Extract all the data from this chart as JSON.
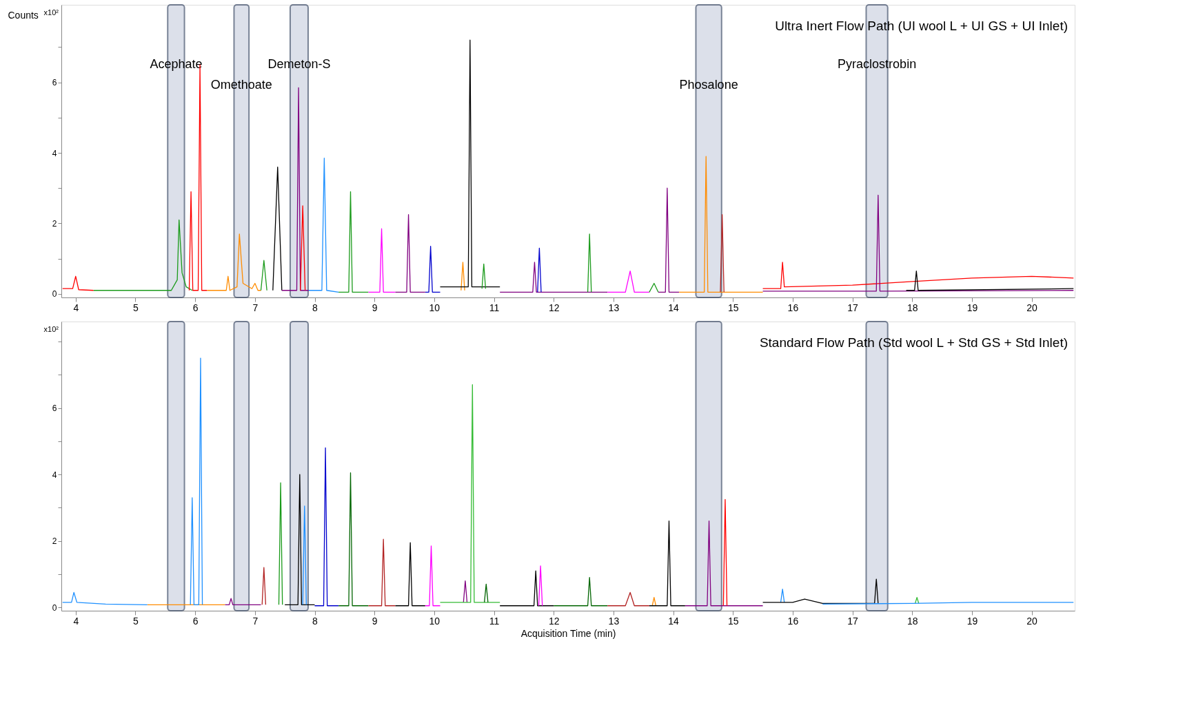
{
  "chart_data": [
    {
      "type": "line",
      "title": "Ultra Inert Flow Path (UI wool L + UI GS + UI Inlet)",
      "ylabel": "Counts",
      "annotations": [
        "x10²"
      ],
      "xlim": [
        3.76,
        20.72
      ],
      "xticks": [
        4,
        5,
        6,
        7,
        8,
        9,
        10,
        11,
        12,
        13,
        14,
        15,
        16,
        17,
        18,
        19,
        20
      ],
      "ylim": [
        -0.1,
        8.2
      ],
      "yticks": [
        0,
        {
          "value": 1,
          "label": null
        },
        2,
        {
          "value": 3,
          "label": null
        },
        4,
        {
          "value": 5,
          "label": null
        },
        6,
        {
          "value": 7,
          "label": null
        }
      ],
      "grid": false,
      "legend": false,
      "bands": [
        {
          "axis": "x",
          "from": 5.54,
          "to": 5.82,
          "label": "Acephate",
          "color": "#c5ccdd"
        },
        {
          "axis": "x",
          "from": 6.65,
          "to": 6.9,
          "label": "Omethoate",
          "color": "#c5ccdd"
        },
        {
          "axis": "x",
          "from": 7.59,
          "to": 7.89,
          "label": "Demeton-S",
          "color": "#c5ccdd"
        },
        {
          "axis": "x",
          "from": 14.38,
          "to": 14.81,
          "label": "Phosalone",
          "color": "#c5ccdd"
        },
        {
          "axis": "x",
          "from": 17.23,
          "to": 17.59,
          "label": "Pyraclostrobin",
          "color": "#c5ccdd"
        }
      ],
      "series": [
        {
          "color": "#ff0000",
          "x": [
            3.78,
            3.95,
            4.0,
            4.05,
            4.3
          ],
          "values": [
            0.15,
            0.15,
            0.5,
            0.12,
            0.1
          ]
        },
        {
          "color": "#1a9a1a",
          "x": [
            4.3,
            5.0,
            5.6,
            5.7,
            5.73,
            5.78,
            5.85,
            5.95
          ],
          "values": [
            0.1,
            0.1,
            0.1,
            0.4,
            2.1,
            0.6,
            0.2,
            0.1
          ]
        },
        {
          "color": "#ff0000",
          "x": [
            5.9,
            5.93,
            5.96,
            6.05,
            6.08,
            6.11,
            6.2
          ],
          "values": [
            0.1,
            2.9,
            0.1,
            0.1,
            6.5,
            0.1,
            0.1
          ]
        },
        {
          "color": "#ff8c00",
          "x": [
            6.2,
            6.52,
            6.55,
            6.58,
            6.7,
            6.74,
            6.8,
            6.95,
            7.0,
            7.05,
            7.1
          ],
          "values": [
            0.1,
            0.1,
            0.5,
            0.1,
            0.2,
            1.7,
            0.3,
            0.15,
            0.3,
            0.1,
            0.1
          ]
        },
        {
          "color": "#1a9a1a",
          "x": [
            7.1,
            7.15,
            7.2
          ],
          "values": [
            0.1,
            0.95,
            0.1
          ]
        },
        {
          "color": "#000000",
          "x": [
            7.3,
            7.38,
            7.45
          ],
          "values": [
            0.1,
            3.6,
            0.1
          ]
        },
        {
          "color": "#800080",
          "x": [
            7.45,
            7.7,
            7.73,
            7.76,
            7.9
          ],
          "values": [
            0.1,
            0.1,
            5.85,
            0.1,
            0.1
          ]
        },
        {
          "color": "#ff0000",
          "x": [
            7.76,
            7.8,
            7.84
          ],
          "values": [
            0.1,
            2.5,
            0.1
          ]
        },
        {
          "color": "#1e90ff",
          "x": [
            7.9,
            8.12,
            8.16,
            8.2,
            8.4
          ],
          "values": [
            0.1,
            0.1,
            3.85,
            0.1,
            0.05
          ]
        },
        {
          "color": "#1a9a1a",
          "x": [
            8.4,
            8.57,
            8.6,
            8.63,
            8.9
          ],
          "values": [
            0.05,
            0.05,
            2.9,
            0.05,
            0.05
          ]
        },
        {
          "color": "#ff00ff",
          "x": [
            8.9,
            9.09,
            9.12,
            9.15,
            9.35
          ],
          "values": [
            0.05,
            0.05,
            1.85,
            0.05,
            0.05
          ]
        },
        {
          "color": "#800080",
          "x": [
            9.35,
            9.54,
            9.57,
            9.6,
            9.85
          ],
          "values": [
            0.05,
            0.05,
            2.25,
            0.05,
            0.05
          ]
        },
        {
          "color": "#0000cd",
          "x": [
            9.85,
            9.91,
            9.94,
            9.97,
            10.1
          ],
          "values": [
            0.05,
            0.05,
            1.35,
            0.05,
            0.05
          ]
        },
        {
          "color": "#ff8c00",
          "x": [
            10.45,
            10.48,
            10.51
          ],
          "values": [
            0.1,
            0.9,
            0.1
          ]
        },
        {
          "color": "#000000",
          "x": [
            10.1,
            10.5,
            10.57,
            10.6,
            10.63,
            10.8,
            11.1
          ],
          "values": [
            0.2,
            0.2,
            0.2,
            7.2,
            0.2,
            0.2,
            0.2
          ]
        },
        {
          "color": "#1a9a1a",
          "x": [
            10.8,
            10.83,
            10.86
          ],
          "values": [
            0.15,
            0.85,
            0.15
          ]
        },
        {
          "color": "#800080",
          "x": [
            11.1,
            11.65,
            11.68,
            11.71,
            11.9,
            12.9
          ],
          "values": [
            0.05,
            0.05,
            0.9,
            0.05,
            0.05,
            0.05
          ]
        },
        {
          "color": "#0000cd",
          "x": [
            11.73,
            11.76,
            11.79
          ],
          "values": [
            0.05,
            1.3,
            0.05
          ]
        },
        {
          "color": "#1a9a1a",
          "x": [
            12.57,
            12.6,
            12.63
          ],
          "values": [
            0.05,
            1.7,
            0.05
          ]
        },
        {
          "color": "#ff00ff",
          "x": [
            12.9,
            13.2,
            13.28,
            13.35,
            13.6
          ],
          "values": [
            0.05,
            0.05,
            0.65,
            0.05,
            0.05
          ]
        },
        {
          "color": "#1a9a1a",
          "x": [
            13.6,
            13.68,
            13.75
          ],
          "values": [
            0.05,
            0.3,
            0.05
          ]
        },
        {
          "color": "#800080",
          "x": [
            13.75,
            13.87,
            13.9,
            13.93,
            14.1
          ],
          "values": [
            0.05,
            0.05,
            3.0,
            0.05,
            0.05
          ]
        },
        {
          "color": "#ff8c00",
          "x": [
            14.1,
            14.52,
            14.55,
            14.58,
            15.5
          ],
          "values": [
            0.05,
            0.05,
            3.9,
            0.05,
            0.05
          ]
        },
        {
          "color": "#b22222",
          "x": [
            14.79,
            14.82,
            14.85
          ],
          "values": [
            0.05,
            2.25,
            0.05
          ]
        },
        {
          "color": "#ff0000",
          "x": [
            15.5,
            15.8,
            15.83,
            15.86,
            17,
            18,
            19,
            20,
            20.7
          ],
          "values": [
            0.15,
            0.15,
            0.9,
            0.2,
            0.25,
            0.35,
            0.45,
            0.5,
            0.45
          ]
        },
        {
          "color": "#800080",
          "x": [
            15.5,
            17.4,
            17.43,
            17.46,
            20.7
          ],
          "values": [
            0.08,
            0.08,
            2.8,
            0.08,
            0.1
          ]
        },
        {
          "color": "#000000",
          "x": [
            17.9,
            18.04,
            18.07,
            18.1,
            20.7
          ],
          "values": [
            0.1,
            0.1,
            0.65,
            0.1,
            0.15
          ]
        }
      ]
    },
    {
      "type": "line",
      "title": "Standard Flow Path (Std wool L + Std GS + Std Inlet)",
      "xlabel": "Acquisition Time (min)",
      "annotations": [
        "x10²"
      ],
      "xlim": [
        3.76,
        20.72
      ],
      "xticks": [
        4,
        5,
        6,
        7,
        8,
        9,
        10,
        11,
        12,
        13,
        14,
        15,
        16,
        17,
        18,
        19,
        20
      ],
      "ylim": [
        -0.1,
        8.6
      ],
      "yticks": [
        0,
        {
          "value": 1,
          "label": null
        },
        2,
        {
          "value": 3,
          "label": null
        },
        4,
        {
          "value": 5,
          "label": null
        },
        6,
        {
          "value": 7,
          "label": null
        },
        {
          "value": 8,
          "label": null
        }
      ],
      "grid": false,
      "legend": false,
      "bands": [
        {
          "axis": "x",
          "from": 5.54,
          "to": 5.82,
          "color": "#c5ccdd"
        },
        {
          "axis": "x",
          "from": 6.65,
          "to": 6.9,
          "color": "#c5ccdd"
        },
        {
          "axis": "x",
          "from": 7.59,
          "to": 7.89,
          "color": "#c5ccdd"
        },
        {
          "axis": "x",
          "from": 14.38,
          "to": 14.81,
          "color": "#c5ccdd"
        },
        {
          "axis": "x",
          "from": 17.23,
          "to": 17.59,
          "color": "#c5ccdd"
        }
      ],
      "series": [
        {
          "color": "#1e90ff",
          "x": [
            3.78,
            3.93,
            3.97,
            4.02,
            4.5,
            5.2
          ],
          "values": [
            0.15,
            0.15,
            0.45,
            0.15,
            0.1,
            0.08
          ]
        },
        {
          "color": "#ff8c00",
          "x": [
            5.2,
            5.9,
            6.5
          ],
          "values": [
            0.08,
            0.08,
            0.08
          ]
        },
        {
          "color": "#1e90ff",
          "x": [
            5.92,
            5.95,
            5.98,
            6.06,
            6.09,
            6.12
          ],
          "values": [
            0.08,
            3.3,
            0.08,
            0.08,
            7.5,
            0.08
          ]
        },
        {
          "color": "#800080",
          "x": [
            6.5,
            6.57,
            6.6,
            6.63,
            7.1
          ],
          "values": [
            0.08,
            0.08,
            0.27,
            0.08,
            0.08
          ]
        },
        {
          "color": "#b22222",
          "x": [
            7.12,
            7.15,
            7.18
          ],
          "values": [
            0.08,
            1.2,
            0.08
          ]
        },
        {
          "color": "#1a9a1a",
          "x": [
            7.4,
            7.43,
            7.46
          ],
          "values": [
            0.08,
            3.75,
            0.08
          ]
        },
        {
          "color": "#000000",
          "x": [
            7.5,
            7.72,
            7.75,
            7.78,
            8.0
          ],
          "values": [
            0.08,
            0.08,
            4.0,
            0.08,
            0.08
          ]
        },
        {
          "color": "#1e90ff",
          "x": [
            7.8,
            7.83,
            7.86
          ],
          "values": [
            0.08,
            3.05,
            0.08
          ]
        },
        {
          "color": "#0000cd",
          "x": [
            8.0,
            8.15,
            8.18,
            8.21,
            8.4
          ],
          "values": [
            0.05,
            0.05,
            4.8,
            0.05,
            0.05
          ]
        },
        {
          "color": "#006400",
          "x": [
            8.4,
            8.57,
            8.6,
            8.63,
            8.9
          ],
          "values": [
            0.05,
            0.05,
            4.05,
            0.05,
            0.05
          ]
        },
        {
          "color": "#b22222",
          "x": [
            8.9,
            9.12,
            9.15,
            9.18,
            9.35
          ],
          "values": [
            0.05,
            0.05,
            2.05,
            0.05,
            0.05
          ]
        },
        {
          "color": "#000000",
          "x": [
            9.35,
            9.57,
            9.6,
            9.63,
            9.85
          ],
          "values": [
            0.05,
            0.05,
            1.95,
            0.05,
            0.05
          ]
        },
        {
          "color": "#ff00ff",
          "x": [
            9.85,
            9.92,
            9.95,
            9.98,
            10.1
          ],
          "values": [
            0.05,
            0.05,
            1.85,
            0.05,
            0.05
          ]
        },
        {
          "color": "#800080",
          "x": [
            10.49,
            10.52,
            10.55
          ],
          "values": [
            0.15,
            0.8,
            0.15
          ]
        },
        {
          "color": "#33bb33",
          "x": [
            10.1,
            10.61,
            10.64,
            10.67,
            11.1
          ],
          "values": [
            0.15,
            0.15,
            6.7,
            0.15,
            0.15
          ]
        },
        {
          "color": "#006400",
          "x": [
            10.84,
            10.87,
            10.9
          ],
          "values": [
            0.15,
            0.7,
            0.15
          ]
        },
        {
          "color": "#000000",
          "x": [
            11.1,
            11.67,
            11.7,
            11.73,
            12.0
          ],
          "values": [
            0.05,
            0.05,
            1.1,
            0.05,
            0.05
          ]
        },
        {
          "color": "#ff00ff",
          "x": [
            11.75,
            11.78,
            11.81
          ],
          "values": [
            0.05,
            1.25,
            0.05
          ]
        },
        {
          "color": "#006400",
          "x": [
            12.0,
            12.57,
            12.6,
            12.63,
            12.9
          ],
          "values": [
            0.05,
            0.05,
            0.9,
            0.05,
            0.05
          ]
        },
        {
          "color": "#b22222",
          "x": [
            12.9,
            13.2,
            13.28,
            13.35,
            13.6
          ],
          "values": [
            0.05,
            0.05,
            0.45,
            0.05,
            0.05
          ]
        },
        {
          "color": "#ff8c00",
          "x": [
            13.65,
            13.68,
            13.71
          ],
          "values": [
            0.05,
            0.3,
            0.05
          ]
        },
        {
          "color": "#000000",
          "x": [
            13.6,
            13.9,
            13.93,
            13.96,
            14.2
          ],
          "values": [
            0.05,
            0.05,
            2.6,
            0.05,
            0.05
          ]
        },
        {
          "color": "#800080",
          "x": [
            14.2,
            14.57,
            14.6,
            14.63,
            14.85,
            15.5
          ],
          "values": [
            0.05,
            0.05,
            2.6,
            0.05,
            0.05,
            0.05
          ]
        },
        {
          "color": "#ff0000",
          "x": [
            14.84,
            14.87,
            14.9
          ],
          "values": [
            0.05,
            3.25,
            0.05
          ]
        },
        {
          "color": "#1e90ff",
          "x": [
            15.8,
            15.83,
            15.86
          ],
          "values": [
            0.15,
            0.55,
            0.15
          ]
        },
        {
          "color": "#000000",
          "x": [
            15.5,
            16.0,
            16.2,
            16.5,
            17.37,
            17.4,
            17.43
          ],
          "values": [
            0.15,
            0.15,
            0.25,
            0.12,
            0.12,
            0.85,
            0.12
          ]
        },
        {
          "color": "#33bb33",
          "x": [
            18.05,
            18.08,
            18.11
          ],
          "values": [
            0.12,
            0.3,
            0.12
          ]
        },
        {
          "color": "#1e90ff",
          "x": [
            16.5,
            18,
            19,
            20.7
          ],
          "values": [
            0.1,
            0.12,
            0.15,
            0.15
          ]
        }
      ]
    }
  ]
}
